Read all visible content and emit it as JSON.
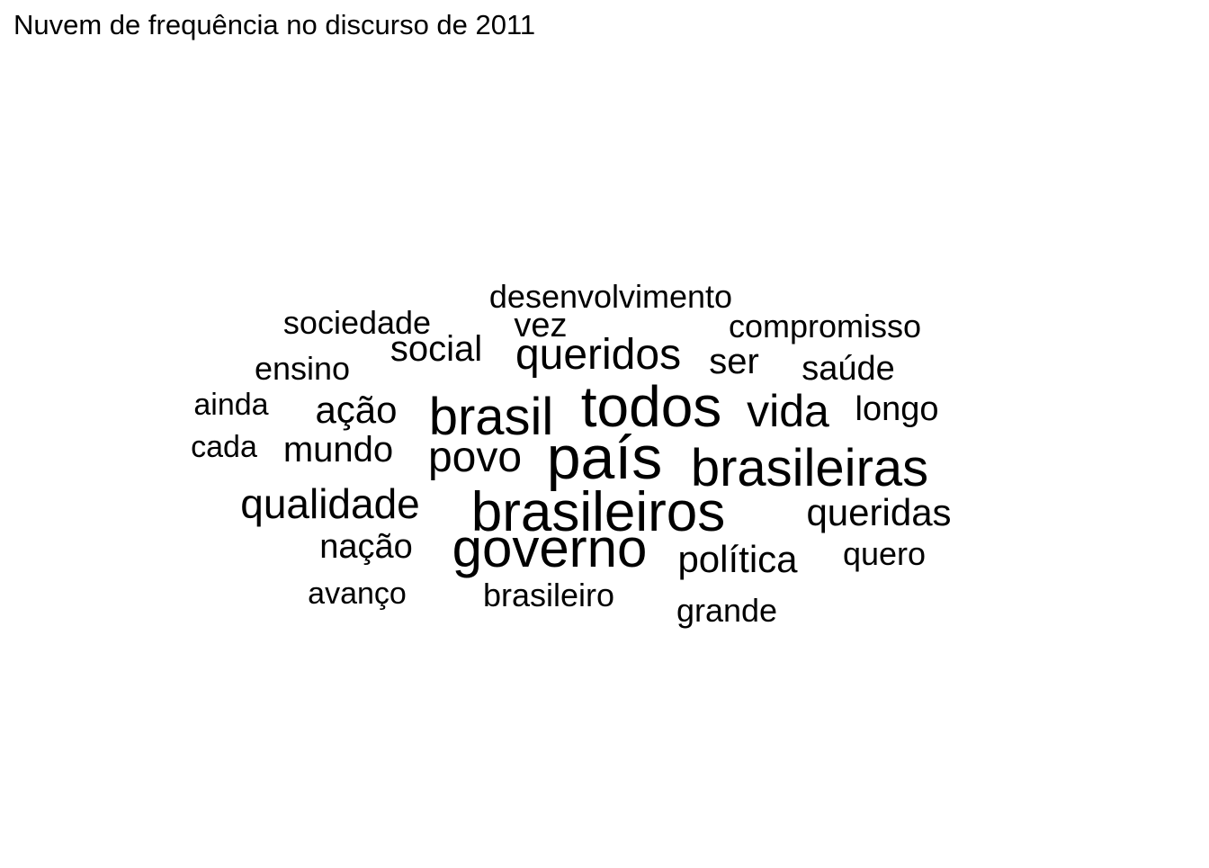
{
  "chart_data": {
    "type": "wordcloud",
    "title": "Nuvem de frequência no discurso de 2011",
    "words": [
      {
        "text": "país",
        "weight": 1.0
      },
      {
        "text": "todos",
        "weight": 0.95
      },
      {
        "text": "brasileiros",
        "weight": 0.92
      },
      {
        "text": "governo",
        "weight": 0.9
      },
      {
        "text": "brasil",
        "weight": 0.85
      },
      {
        "text": "brasileiras",
        "weight": 0.85
      },
      {
        "text": "vida",
        "weight": 0.72
      },
      {
        "text": "povo",
        "weight": 0.68
      },
      {
        "text": "queridos",
        "weight": 0.68
      },
      {
        "text": "qualidade",
        "weight": 0.64
      },
      {
        "text": "ação",
        "weight": 0.6
      },
      {
        "text": "mundo",
        "weight": 0.58
      },
      {
        "text": "política",
        "weight": 0.6
      },
      {
        "text": "queridas",
        "weight": 0.6
      },
      {
        "text": "social",
        "weight": 0.58
      },
      {
        "text": "longo",
        "weight": 0.55
      },
      {
        "text": "ser",
        "weight": 0.55
      },
      {
        "text": "nação",
        "weight": 0.55
      },
      {
        "text": "saúde",
        "weight": 0.55
      },
      {
        "text": "vez",
        "weight": 0.55
      },
      {
        "text": "desenvolvimento",
        "weight": 0.52
      },
      {
        "text": "compromisso",
        "weight": 0.5
      },
      {
        "text": "sociedade",
        "weight": 0.5
      },
      {
        "text": "ensino",
        "weight": 0.5
      },
      {
        "text": "quero",
        "weight": 0.5
      },
      {
        "text": "brasileiro",
        "weight": 0.5
      },
      {
        "text": "grande",
        "weight": 0.5
      },
      {
        "text": "ainda",
        "weight": 0.46
      },
      {
        "text": "cada",
        "weight": 0.45
      },
      {
        "text": "avanço",
        "weight": 0.46
      }
    ]
  }
}
